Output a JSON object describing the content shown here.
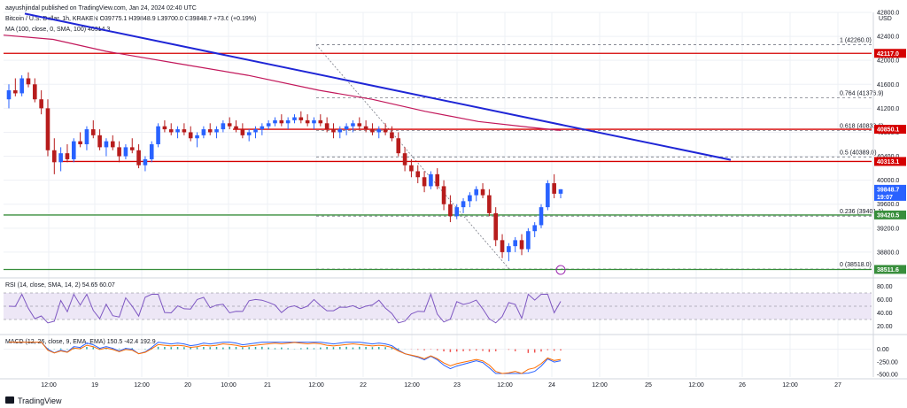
{
  "header": {
    "published_line": "aayushjindal published on TradingView.com, Jan 24, 2024 02:40 UTC",
    "symbol_line": "Bitcoin / U.S. Dollar, 1h, KRAKEN O39775.1 H39848.9 L39700.0 C39848.7 +73.6 (+0.19%)",
    "ma_line": "MA (100, close, 0, SMA, 100) 40814.3",
    "currency": "USD"
  },
  "footer": {
    "brand": "TradingView"
  },
  "colors": {
    "up": "#2962ff",
    "down": "#b71c1c",
    "ma": "#c2185b",
    "trend": "#1f26d6",
    "resistance": "#d50000",
    "support": "#388e3c",
    "fib": "#787b86",
    "rsi": "#7e57c2",
    "macd": "#2962ff",
    "signal": "#ff6d00"
  },
  "chart_data": [
    {
      "type": "candlestick",
      "title": "Bitcoin / U.S. Dollar, 1h, KRAKEN",
      "price_range": [
        38400,
        42800
      ],
      "x_ticks": [
        "12:00",
        "19",
        "12:00",
        "20",
        "10:00",
        "21",
        "12:00",
        "22",
        "12:00",
        "23",
        "12:00",
        "24",
        "12:00",
        "25",
        "12:00",
        "26",
        "12:00",
        "27"
      ],
      "y_ticks": [
        38800,
        39200,
        39600,
        40000,
        40400,
        40800,
        41200,
        41600,
        42000,
        42400,
        42800
      ],
      "price_labels": [
        {
          "value": "42117.0",
          "kind": "resistance"
        },
        {
          "value": "40850.1",
          "kind": "resistance"
        },
        {
          "value": "40313.1",
          "kind": "resistance"
        },
        {
          "value": "39848.7",
          "kind": "last",
          "extra": "19:07"
        },
        {
          "value": "39420.5",
          "kind": "support"
        },
        {
          "value": "38511.6",
          "kind": "support"
        }
      ],
      "horizontal_lines": [
        42117,
        40850,
        40313,
        39420,
        38511
      ],
      "fib_levels": [
        {
          "label": "1 (42260.0)",
          "value": 42260
        },
        {
          "label": "0.764 (41376.9)",
          "value": 41376.9
        },
        {
          "label": "0.618 (40830.6)",
          "value": 40830.6
        },
        {
          "label": "0.5 (40389.0)",
          "value": 40389
        },
        {
          "label": "0.236 (39401.1)",
          "value": 39401.1
        },
        {
          "label": "0 (38518.0)",
          "value": 38518
        }
      ],
      "trendline": {
        "from": [
          0,
          42850
        ],
        "to": [
          150,
          40400
        ]
      },
      "candles": [
        [
          41350,
          41600,
          41200,
          41500
        ],
        [
          41500,
          41700,
          41400,
          41450
        ],
        [
          41450,
          41750,
          41400,
          41700
        ],
        [
          41700,
          41800,
          41550,
          41600
        ],
        [
          41600,
          41700,
          41300,
          41350
        ],
        [
          41350,
          41500,
          41100,
          41200
        ],
        [
          41200,
          41350,
          40400,
          40500
        ],
        [
          40500,
          40700,
          40100,
          40300
        ],
        [
          40300,
          40550,
          40150,
          40450
        ],
        [
          40450,
          40600,
          40300,
          40350
        ],
        [
          40350,
          40700,
          40300,
          40650
        ],
        [
          40650,
          40800,
          40550,
          40600
        ],
        [
          40600,
          40900,
          40500,
          40850
        ],
        [
          40850,
          41000,
          40700,
          40750
        ],
        [
          40750,
          40850,
          40500,
          40550
        ],
        [
          40550,
          40700,
          40400,
          40650
        ],
        [
          40650,
          40750,
          40500,
          40550
        ],
        [
          40550,
          40650,
          40300,
          40400
        ],
        [
          40400,
          40600,
          40350,
          40550
        ],
        [
          40550,
          40700,
          40450,
          40500
        ],
        [
          40500,
          40600,
          40200,
          40250
        ],
        [
          40250,
          40400,
          40150,
          40350
        ],
        [
          40350,
          40650,
          40300,
          40600
        ],
        [
          40600,
          40950,
          40550,
          40900
        ],
        [
          40900,
          41000,
          40800,
          40850
        ],
        [
          40850,
          40950,
          40750,
          40800
        ],
        [
          40800,
          40900,
          40700,
          40850
        ],
        [
          40850,
          40950,
          40750,
          40800
        ],
        [
          40800,
          40900,
          40650,
          40700
        ],
        [
          40700,
          40800,
          40550,
          40750
        ],
        [
          40750,
          40900,
          40700,
          40850
        ],
        [
          40850,
          40950,
          40750,
          40800
        ],
        [
          40800,
          40900,
          40700,
          40850
        ],
        [
          40850,
          41000,
          40800,
          40950
        ],
        [
          40950,
          41050,
          40850,
          40900
        ],
        [
          40900,
          41000,
          40800,
          40850
        ],
        [
          40850,
          40950,
          40700,
          40750
        ],
        [
          40750,
          40850,
          40650,
          40800
        ],
        [
          40800,
          40900,
          40700,
          40850
        ],
        [
          40850,
          40950,
          40750,
          40900
        ],
        [
          40900,
          41000,
          40850,
          40950
        ],
        [
          40950,
          41050,
          40900,
          41000
        ],
        [
          41000,
          41100,
          40900,
          40950
        ],
        [
          40950,
          41050,
          40850,
          41000
        ],
        [
          41000,
          41100,
          40950,
          41050
        ],
        [
          41050,
          41150,
          40950,
          41000
        ],
        [
          41000,
          41100,
          40900,
          40950
        ],
        [
          40950,
          41050,
          40850,
          41000
        ],
        [
          41000,
          41100,
          40900,
          40950
        ],
        [
          40950,
          41050,
          40800,
          40850
        ],
        [
          40850,
          40950,
          40700,
          40800
        ],
        [
          40800,
          40900,
          40700,
          40850
        ],
        [
          40850,
          40950,
          40750,
          40900
        ],
        [
          40900,
          41000,
          40800,
          40950
        ],
        [
          40950,
          41050,
          40850,
          40900
        ],
        [
          40900,
          41000,
          40800,
          40850
        ],
        [
          40850,
          40950,
          40750,
          40800
        ],
        [
          40800,
          40900,
          40700,
          40850
        ],
        [
          40850,
          40950,
          40750,
          40800
        ],
        [
          40800,
          40900,
          40650,
          40700
        ],
        [
          40700,
          40800,
          40400,
          40450
        ],
        [
          40450,
          40550,
          40150,
          40250
        ],
        [
          40250,
          40350,
          40050,
          40150
        ],
        [
          40150,
          40250,
          39950,
          40050
        ],
        [
          40050,
          40150,
          39800,
          39900
        ],
        [
          39900,
          40150,
          39850,
          40100
        ],
        [
          40100,
          40200,
          39850,
          39900
        ],
        [
          39900,
          40000,
          39500,
          39600
        ],
        [
          39600,
          39750,
          39300,
          39400
        ],
        [
          39400,
          39600,
          39350,
          39550
        ],
        [
          39550,
          39700,
          39450,
          39650
        ],
        [
          39650,
          39800,
          39550,
          39750
        ],
        [
          39750,
          39900,
          39650,
          39850
        ],
        [
          39850,
          39950,
          39700,
          39750
        ],
        [
          39750,
          39850,
          39400,
          39450
        ],
        [
          39450,
          39550,
          38900,
          39000
        ],
        [
          39000,
          39100,
          38700,
          38800
        ],
        [
          38800,
          38950,
          38650,
          38900
        ],
        [
          38900,
          39050,
          38800,
          39000
        ],
        [
          39000,
          39100,
          38750,
          38850
        ],
        [
          38850,
          39200,
          38800,
          39150
        ],
        [
          39150,
          39300,
          39050,
          39250
        ],
        [
          39250,
          39600,
          39200,
          39550
        ],
        [
          39550,
          40000,
          39500,
          39950
        ],
        [
          39950,
          40100,
          39700,
          39775
        ],
        [
          39775,
          39850,
          39700,
          39849
        ]
      ]
    },
    {
      "type": "line",
      "title": "RSI (14, close, SMA, 14, 2)",
      "values_shown": [
        "54.65",
        "60.07"
      ],
      "y_ticks": [
        20,
        40,
        60,
        80
      ]
    },
    {
      "type": "bar",
      "title": "MACD (12, 26, close, 9, EMA, EMA)",
      "values_shown": [
        "150.5",
        "-42.4",
        "192.9"
      ],
      "y_ticks": [
        "0.00",
        "-250.00",
        "-500.00"
      ]
    }
  ]
}
